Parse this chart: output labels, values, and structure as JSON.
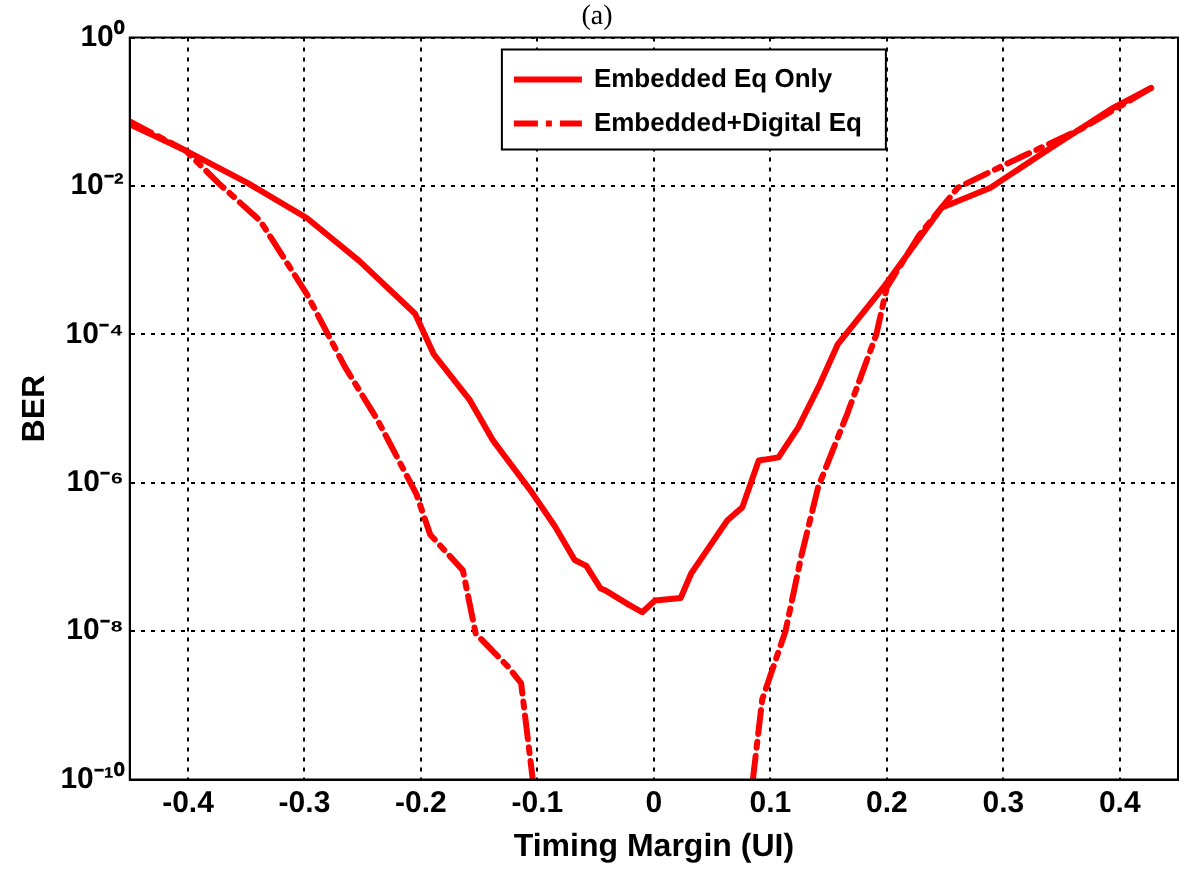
{
  "chart_data": {
    "type": "line",
    "title": "(a)",
    "xlabel": "Timing Margin (UI)",
    "ylabel": "BER",
    "log": "y",
    "grid": true,
    "legend": "top",
    "marker": "none",
    "xlim": [
      -0.45,
      0.45
    ],
    "xticks": [
      -0.4,
      -0.3,
      -0.2,
      -0.1,
      0,
      0.1,
      0.2,
      0.3,
      0.4
    ],
    "ylim": [
      1e-10,
      1
    ],
    "yticks": [
      {
        "value": 1,
        "label": "10⁰"
      },
      {
        "value": 0.01,
        "label": "10⁻²"
      },
      {
        "value": 0.0001,
        "label": "10⁻⁴"
      },
      {
        "value": 1e-06,
        "label": "10⁻⁶"
      },
      {
        "value": 1e-08,
        "label": "10⁻⁸"
      },
      {
        "value": 1e-10,
        "label": "10⁻¹⁰"
      }
    ],
    "series": [
      {
        "name": "Embedded Eq Only",
        "color": "#ff0000",
        "line_style": "solid",
        "x": [
          -0.45,
          -0.402,
          -0.349,
          -0.298,
          -0.253,
          -0.205,
          -0.189,
          -0.158,
          -0.138,
          -0.106,
          -0.085,
          -0.068,
          -0.058,
          -0.046,
          -0.041,
          -0.022,
          -0.01,
          0.001,
          0.023,
          0.032,
          0.048,
          0.063,
          0.076,
          0.09,
          0.107,
          0.124,
          0.141,
          0.158,
          0.197,
          0.247,
          0.289,
          0.34,
          0.393,
          0.427
        ],
        "values": [
          0.068,
          0.03,
          0.011,
          0.0037,
          0.00098,
          0.00019,
          5.4e-05,
          1.3e-05,
          3.7e-06,
          7.9e-07,
          2.6e-07,
          9.1e-08,
          7.6e-08,
          3.8e-08,
          3.5e-08,
          2.3e-08,
          1.8e-08,
          2.6e-08,
          2.8e-08,
          6e-08,
          1.4e-07,
          3.1e-07,
          4.7e-07,
          2e-06,
          2.2e-06,
          5.6e-06,
          1.9e-05,
          7.4e-05,
          0.00043,
          0.0051,
          0.0095,
          0.032,
          0.11,
          0.21
        ]
      },
      {
        "name": "Embedded+Digital Eq",
        "color": "#ff0000",
        "line_style": "dashdot",
        "x": [
          -0.45,
          -0.402,
          -0.374,
          -0.338,
          -0.298,
          -0.265,
          -0.237,
          -0.204,
          -0.192,
          -0.164,
          -0.153,
          -0.125,
          -0.114,
          -0.104,
          0,
          0.085,
          0.093,
          0.113,
          0.127,
          0.141,
          0.166,
          0.191,
          0.2,
          0.228,
          0.261,
          0.306,
          0.368,
          0.427
        ],
        "values": [
          0.074,
          0.03,
          0.011,
          0.0034,
          0.00035,
          3.6e-05,
          6.9e-06,
          7.1e-07,
          2e-07,
          6.6e-08,
          9.3e-09,
          3.3e-09,
          2e-09,
          1e-10,
          null,
          1e-10,
          1.2e-09,
          1e-08,
          1.1e-07,
          8.7e-07,
          8.5e-06,
          0.0001,
          0.00043,
          0.0022,
          0.0095,
          0.021,
          0.06,
          0.21
        ]
      }
    ]
  }
}
